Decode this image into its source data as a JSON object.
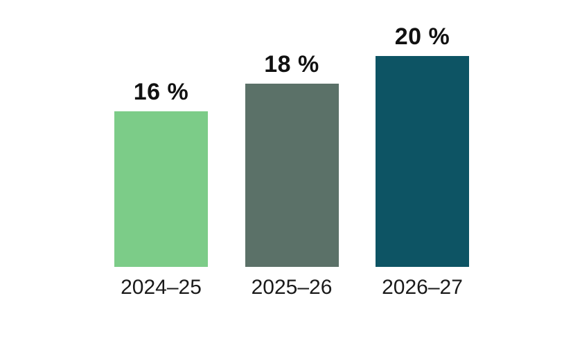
{
  "chart_data": {
    "type": "bar",
    "title": "",
    "categories": [
      "2024–25",
      "2025–26",
      "2026–27"
    ],
    "values": [
      16,
      18,
      20
    ],
    "value_labels": [
      "16 %",
      "18 %",
      "20 %"
    ],
    "bar_colors": [
      "#7CCC88",
      "#5B7168",
      "#0D5464"
    ],
    "background_color": "#FFFFFF",
    "label_color": "#111111",
    "xlabel": "",
    "ylabel": "",
    "grid": false,
    "legend": false,
    "axes_visible": false,
    "value_label_position": "above-bar",
    "category_label_position": "below-bar"
  }
}
